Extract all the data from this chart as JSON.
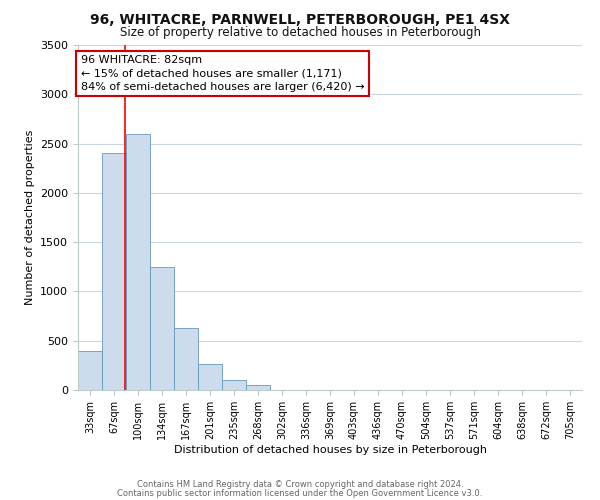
{
  "title": "96, WHITACRE, PARNWELL, PETERBOROUGH, PE1 4SX",
  "subtitle": "Size of property relative to detached houses in Peterborough",
  "xlabel": "Distribution of detached houses by size in Peterborough",
  "ylabel": "Number of detached properties",
  "bar_labels": [
    "33sqm",
    "67sqm",
    "100sqm",
    "134sqm",
    "167sqm",
    "201sqm",
    "235sqm",
    "268sqm",
    "302sqm",
    "336sqm",
    "369sqm",
    "403sqm",
    "436sqm",
    "470sqm",
    "504sqm",
    "537sqm",
    "571sqm",
    "604sqm",
    "638sqm",
    "672sqm",
    "705sqm"
  ],
  "bar_values": [
    400,
    2400,
    2600,
    1250,
    630,
    260,
    105,
    50,
    0,
    0,
    0,
    0,
    0,
    0,
    0,
    0,
    0,
    0,
    0,
    0,
    0
  ],
  "bar_color": "#ccdcec",
  "bar_edge_color": "#6699bb",
  "ylim": [
    0,
    3500
  ],
  "yticks": [
    0,
    500,
    1000,
    1500,
    2000,
    2500,
    3000,
    3500
  ],
  "red_line_x": 1.45,
  "annotation_text": "96 WHITACRE: 82sqm\n← 15% of detached houses are smaller (1,171)\n84% of semi-detached houses are larger (6,420) →",
  "annotation_box_color": "#ffffff",
  "annotation_box_edge": "#cc0000",
  "footer_line1": "Contains HM Land Registry data © Crown copyright and database right 2024.",
  "footer_line2": "Contains public sector information licensed under the Open Government Licence v3.0.",
  "background_color": "#ffffff",
  "grid_color": "#c8d8e4",
  "title_fontsize": 10,
  "subtitle_fontsize": 8.5,
  "ylabel_fontsize": 8,
  "xlabel_fontsize": 8,
  "tick_fontsize": 7,
  "ytick_fontsize": 8,
  "annot_fontsize": 8,
  "footer_fontsize": 6
}
